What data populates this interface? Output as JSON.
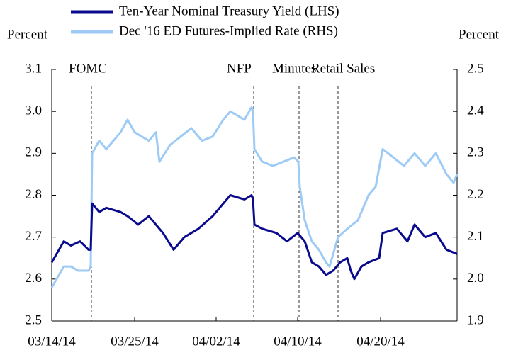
{
  "chart_data": {
    "type": "line",
    "y_label": "Percent",
    "y2_label": "Percent",
    "xlim": [
      0,
      572
    ],
    "xticks": [
      {
        "value": 0,
        "label": "03/14/14"
      },
      {
        "value": 117,
        "label": "03/25/14"
      },
      {
        "value": 232,
        "label": "04/02/14"
      },
      {
        "value": 347,
        "label": "04/10/14"
      },
      {
        "value": 464,
        "label": "04/20/14"
      }
    ],
    "ylim": [
      2.5,
      3.1
    ],
    "yticks": [
      2.5,
      2.6,
      2.7,
      2.8,
      2.9,
      {
        "value": 3,
        "label": "3.0"
      },
      3.1
    ],
    "y2lim": [
      1.9,
      2.5
    ],
    "y2ticks": [
      1.9,
      {
        "value": 2,
        "label": "2.0"
      },
      2.1,
      2.2,
      2.3,
      2.4,
      2.5
    ],
    "annotations": [
      {
        "text": "FOMC",
        "x": 56
      },
      {
        "text": "NFP",
        "x": 285
      },
      {
        "text": "Minutes",
        "x": 349
      },
      {
        "text": "Retail Sales",
        "x": 404
      }
    ],
    "series": [
      {
        "name": "Ten-Year Nominal Treasury Yield (LHS)",
        "color": "#0a0a8c",
        "axis": "y",
        "x": [
          0,
          17,
          27,
          40,
          52,
          55,
          57,
          67,
          77,
          97,
          107,
          122,
          137,
          157,
          172,
          187,
          207,
          227,
          242,
          252,
          272,
          282,
          284,
          286,
          297,
          317,
          332,
          347,
          357,
          367,
          377,
          387,
          397,
          407,
          417,
          422,
          427,
          437,
          447,
          462,
          467,
          487,
          502,
          512,
          527,
          542,
          557,
          572
        ],
        "values": [
          2.64,
          2.69,
          2.68,
          2.69,
          2.67,
          2.67,
          2.78,
          2.76,
          2.77,
          2.76,
          2.75,
          2.73,
          2.75,
          2.71,
          2.67,
          2.7,
          2.72,
          2.75,
          2.78,
          2.8,
          2.79,
          2.8,
          2.79,
          2.73,
          2.72,
          2.71,
          2.69,
          2.71,
          2.69,
          2.64,
          2.63,
          2.61,
          2.62,
          2.64,
          2.65,
          2.62,
          2.6,
          2.63,
          2.64,
          2.65,
          2.71,
          2.72,
          2.69,
          2.73,
          2.7,
          2.71,
          2.67,
          2.66
        ]
      },
      {
        "name": "Dec '16 ED Futures-Implied Rate (RHS)",
        "color": "#9dcbf5",
        "axis": "y2",
        "x": [
          0,
          17,
          27,
          37,
          52,
          55,
          57,
          67,
          77,
          87,
          97,
          107,
          117,
          127,
          137,
          147,
          152,
          167,
          182,
          197,
          212,
          227,
          242,
          252,
          272,
          282,
          284,
          286,
          297,
          312,
          327,
          342,
          348,
          350,
          357,
          367,
          377,
          387,
          392,
          404,
          417,
          432,
          447,
          457,
          467,
          482,
          497,
          512,
          527,
          542,
          557,
          567,
          572
        ],
        "values": [
          1.98,
          2.03,
          2.03,
          2.02,
          2.02,
          2.03,
          2.3,
          2.33,
          2.31,
          2.33,
          2.35,
          2.38,
          2.35,
          2.34,
          2.33,
          2.35,
          2.28,
          2.32,
          2.34,
          2.36,
          2.33,
          2.34,
          2.38,
          2.4,
          2.38,
          2.41,
          2.4,
          2.31,
          2.28,
          2.27,
          2.28,
          2.29,
          2.28,
          2.22,
          2.14,
          2.09,
          2.07,
          2.04,
          2.03,
          2.1,
          2.12,
          2.14,
          2.2,
          2.22,
          2.31,
          2.29,
          2.27,
          2.3,
          2.27,
          2.3,
          2.25,
          2.23,
          2.25
        ]
      }
    ]
  }
}
